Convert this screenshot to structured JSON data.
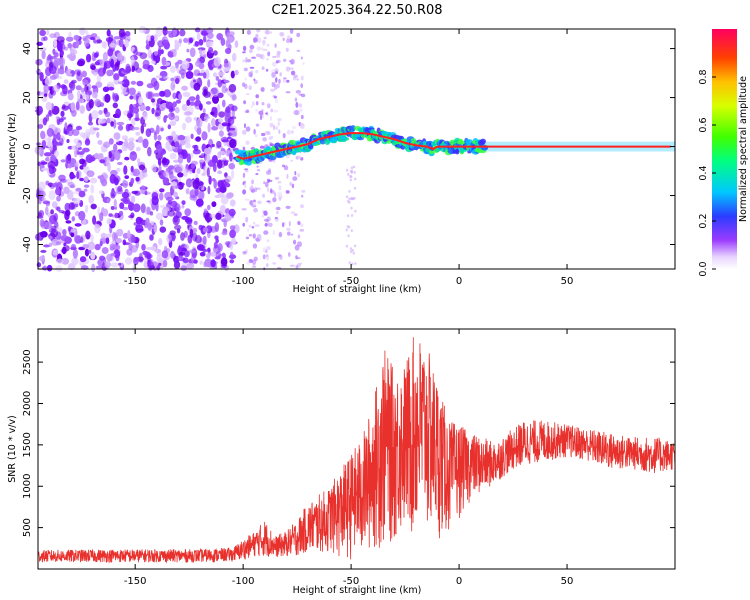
{
  "chart_data": [
    {
      "type": "heatmap",
      "title": "C2E1.2025.364.22.50.R08",
      "xlabel": "Height of straight line (km)",
      "ylabel": "Frequency (Hz)",
      "xlim": [
        -195,
        100
      ],
      "ylim": [
        -50,
        48
      ],
      "xticks": [
        -150,
        -100,
        -50,
        0,
        50
      ],
      "yticks": [
        -40,
        -20,
        0,
        20,
        40
      ],
      "trace": {
        "name": "Doppler frequency track",
        "x": [
          -103,
          -100,
          -95,
          -90,
          -85,
          -80,
          -75,
          -70,
          -65,
          -60,
          -55,
          -50,
          -45,
          -40,
          -35,
          -30,
          -25,
          -20,
          -15,
          -12,
          -10,
          -5,
          0,
          5,
          10,
          20,
          40,
          60,
          80,
          98
        ],
        "y": [
          -4,
          -5,
          -4,
          -3,
          -2,
          -1,
          0,
          1,
          3,
          4,
          5,
          5.5,
          5.5,
          5,
          4,
          3,
          1.5,
          0.5,
          0,
          -1,
          0,
          0,
          0,
          0,
          0,
          0,
          0,
          0,
          0,
          0
        ]
      },
      "colorbar": {
        "label": "Normalized spectral amplitude",
        "range": [
          0.0,
          1.0
        ],
        "ticks": [
          "0.0",
          "0.2",
          "0.4",
          "0.6",
          "0.8"
        ]
      }
    },
    {
      "type": "line",
      "xlabel": "Height of straight line (km)",
      "ylabel": "SNR (10 * v/v)",
      "xlim": [
        -195,
        100
      ],
      "ylim": [
        0,
        2900
      ],
      "xticks": [
        -150,
        -100,
        -50,
        0,
        50
      ],
      "yticks": [
        500,
        1000,
        1500,
        2000,
        2500
      ],
      "series": [
        {
          "name": "SNR",
          "color": "#e8302c",
          "envelope": {
            "x": [
              -195,
              -160,
              -120,
              -105,
              -100,
              -95,
              -90,
              -85,
              -80,
              -75,
              -70,
              -65,
              -60,
              -55,
              -50,
              -45,
              -40,
              -35,
              -30,
              -25,
              -20,
              -15,
              -10,
              -5,
              0,
              5,
              10,
              15,
              20,
              25,
              30,
              40,
              50,
              60,
              70,
              80,
              90,
              100
            ],
            "low": [
              80,
              80,
              80,
              90,
              110,
              150,
              150,
              140,
              150,
              160,
              200,
              200,
              200,
              100,
              100,
              100,
              200,
              200,
              300,
              400,
              300,
              400,
              350,
              400,
              600,
              800,
              900,
              1000,
              1100,
              1200,
              1250,
              1300,
              1350,
              1300,
              1200,
              1200,
              1150,
              1200
            ],
            "high": [
              230,
              240,
              240,
              260,
              360,
              450,
              600,
              400,
              460,
              600,
              800,
              900,
              1000,
              1200,
              1400,
              1600,
              2000,
              2700,
              2400,
              2500,
              2900,
              2700,
              2300,
              1800,
              1750,
              1650,
              1600,
              1550,
              1600,
              1700,
              1800,
              1800,
              1750,
              1700,
              1650,
              1600,
              1600,
              1550
            ]
          }
        }
      ]
    }
  ]
}
